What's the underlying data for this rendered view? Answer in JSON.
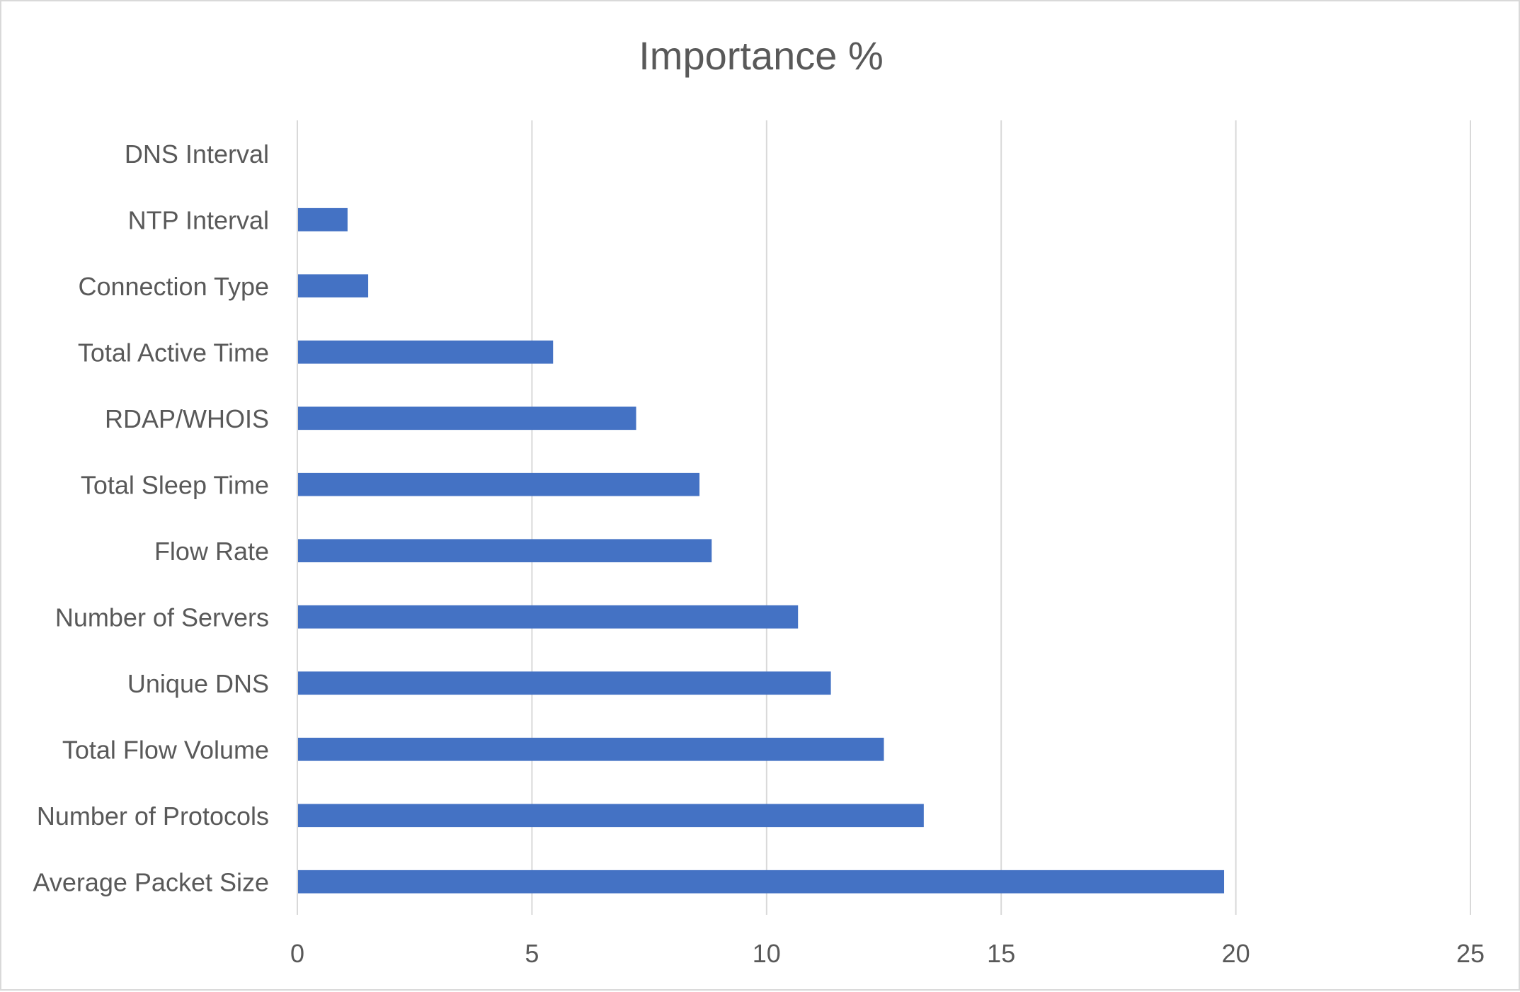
{
  "chart_data": {
    "type": "bar",
    "orientation": "horizontal",
    "title": "Importance %",
    "xlabel": "",
    "ylabel": "",
    "categories": [
      "Average Packet Size",
      "Number of Protocols",
      "Total Flow Volume",
      "Unique DNS",
      "Number of Servers",
      "Flow Rate",
      "Total Sleep Time",
      "RDAP/WHOIS",
      "Total Active Time",
      "Connection Type",
      "NTP Interval",
      "DNS Interval"
    ],
    "values": [
      19.75,
      13.35,
      12.5,
      11.37,
      10.67,
      8.83,
      8.57,
      7.22,
      5.45,
      1.51,
      1.07,
      0
    ],
    "xlim": [
      0,
      25
    ],
    "xticks": [
      "0",
      "5",
      "10",
      "15",
      "20",
      "25"
    ],
    "grid": true,
    "legend": "none",
    "bar_color": "#4472c4"
  }
}
